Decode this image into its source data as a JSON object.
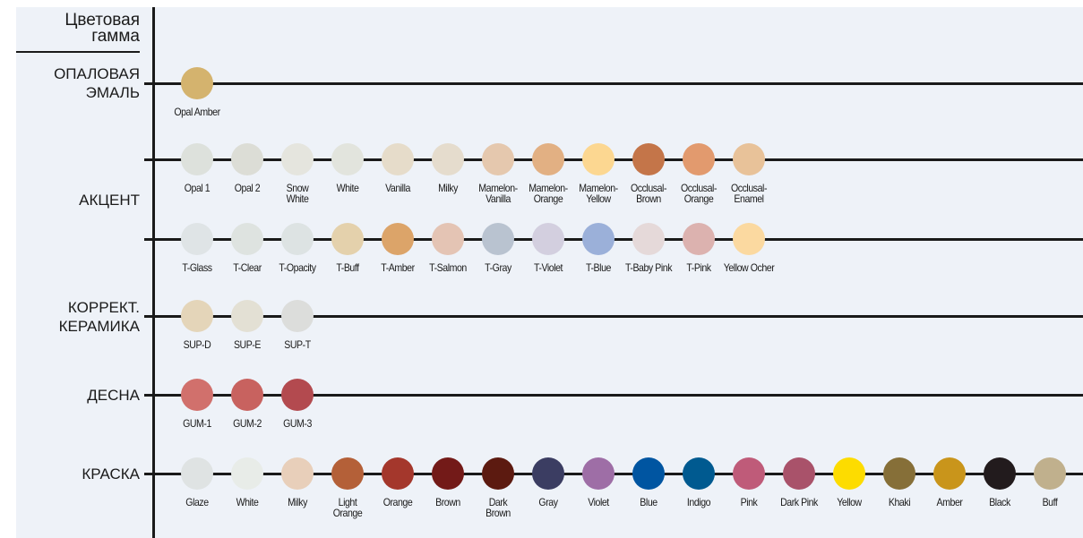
{
  "header": {
    "title": "Цветовая\nгамма"
  },
  "sections": [
    {
      "label": "ОПАЛОВАЯ\nЭМАЛЬ",
      "rows": [
        {
          "swatches": [
            {
              "name": "Opal Amber",
              "color": "#d4b36e"
            }
          ]
        }
      ]
    },
    {
      "label": "АКЦЕНТ",
      "rows": [
        {
          "swatches": [
            {
              "name": "Opal 1",
              "color": "#dde1dc"
            },
            {
              "name": "Opal 2",
              "color": "#dcddd6"
            },
            {
              "name": "Snow\nWhite",
              "color": "#e5e5de"
            },
            {
              "name": "White",
              "color": "#e2e4dd"
            },
            {
              "name": "Vanilla",
              "color": "#e6dcca"
            },
            {
              "name": "Milky",
              "color": "#e5dccd"
            },
            {
              "name": "Mamelon-\nVanilla",
              "color": "#e5c8ae"
            },
            {
              "name": "Mamelon-\nOrange",
              "color": "#e2b083"
            },
            {
              "name": "Mamelon-\nYellow",
              "color": "#fcd791"
            },
            {
              "name": "Occlusal-\nBrown",
              "color": "#c47549"
            },
            {
              "name": "Occlusal-\nOrange",
              "color": "#e29a6e"
            },
            {
              "name": "Occlusal-\nEnamel",
              "color": "#e8c299"
            }
          ]
        },
        {
          "swatches": [
            {
              "name": "T-Glass",
              "color": "#dfe4e6"
            },
            {
              "name": "T-Clear",
              "color": "#dee3e0"
            },
            {
              "name": "T-Opacity",
              "color": "#dde3e3"
            },
            {
              "name": "T-Buff",
              "color": "#e4d1ac"
            },
            {
              "name": "T-Amber",
              "color": "#dca469"
            },
            {
              "name": "T-Salmon",
              "color": "#e4c4b4"
            },
            {
              "name": "T-Gray",
              "color": "#b9c3d0"
            },
            {
              "name": "T-Violet",
              "color": "#d3cfdf"
            },
            {
              "name": "T-Blue",
              "color": "#9bb0d9"
            },
            {
              "name": "T-Baby Pink",
              "color": "#e5d9d9"
            },
            {
              "name": "T-Pink",
              "color": "#dcb2af"
            },
            {
              "name": "Yellow Ocher",
              "color": "#fbd9a0"
            }
          ]
        }
      ]
    },
    {
      "label": "КОРРЕКТ.\nКЕРАМИКА",
      "rows": [
        {
          "swatches": [
            {
              "name": "SUP-D",
              "color": "#e4d5b9"
            },
            {
              "name": "SUP-E",
              "color": "#e3e0d4"
            },
            {
              "name": "SUP-T",
              "color": "#dcdddb"
            }
          ]
        }
      ]
    },
    {
      "label": "ДЕСНА",
      "rows": [
        {
          "swatches": [
            {
              "name": "GUM-1",
              "color": "#d1706c"
            },
            {
              "name": "GUM-2",
              "color": "#c8625f"
            },
            {
              "name": "GUM-3",
              "color": "#b34a4f"
            }
          ]
        }
      ]
    },
    {
      "label": "КРАСКА",
      "rows": [
        {
          "swatches": [
            {
              "name": "Glaze",
              "color": "#dfe3e3"
            },
            {
              "name": "White",
              "color": "#e8ece8"
            },
            {
              "name": "Milky",
              "color": "#e8cfba"
            },
            {
              "name": "Light\nOrange",
              "color": "#b46038"
            },
            {
              "name": "Orange",
              "color": "#a4372c"
            },
            {
              "name": "Brown",
              "color": "#731a18"
            },
            {
              "name": "Dark\nBrown",
              "color": "#5c1a10"
            },
            {
              "name": "Gray",
              "color": "#3b3d62"
            },
            {
              "name": "Violet",
              "color": "#9e6ea6"
            },
            {
              "name": "Blue",
              "color": "#0055a1"
            },
            {
              "name": "Indigo",
              "color": "#005a90"
            },
            {
              "name": "Pink",
              "color": "#bf5b79"
            },
            {
              "name": "Dark Pink",
              "color": "#a9526a"
            },
            {
              "name": "Yellow",
              "color": "#fddc00"
            },
            {
              "name": "Khaki",
              "color": "#866f38"
            },
            {
              "name": "Amber",
              "color": "#c9951b"
            },
            {
              "name": "Black",
              "color": "#221b1d"
            },
            {
              "name": "Buff",
              "color": "#c0b08d"
            }
          ]
        }
      ]
    }
  ]
}
